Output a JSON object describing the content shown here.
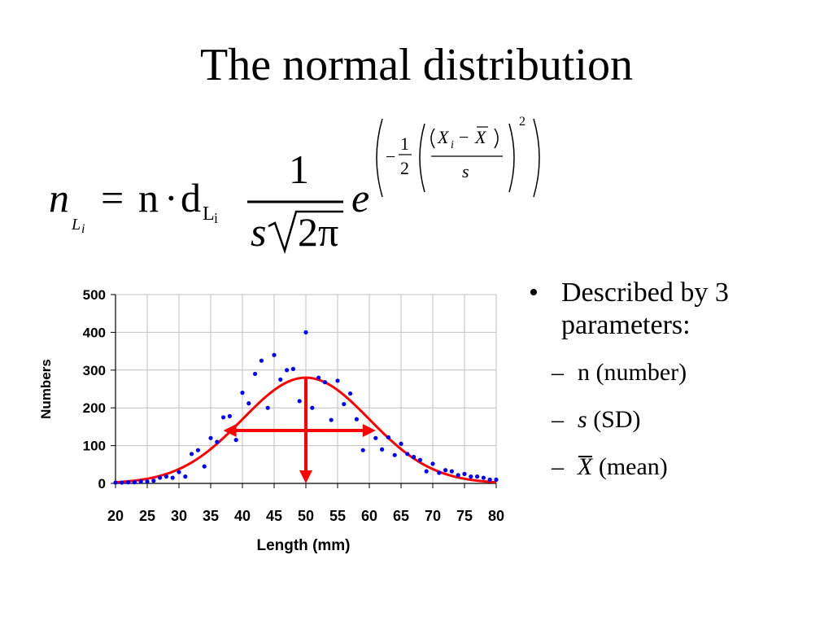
{
  "title": "The normal distribution",
  "formula": {
    "lhs_n": "n",
    "lhs_sub": "L",
    "lhs_sub_i": "i",
    "equals": "=",
    "n_text": "n",
    "dot": "·",
    "d_text": "d",
    "d_sub": "L",
    "d_sub_i": "i",
    "frac_num": "1",
    "frac_den_s": "s",
    "frac_den_rest": "2π",
    "e": "e",
    "exp_minus": "−",
    "exp_half_num": "1",
    "exp_half_den": "2",
    "exp_x": "X",
    "exp_x_sub": "i",
    "exp_minus2": "−",
    "exp_xbar": "X",
    "exp_s": "s",
    "exp_power": "2"
  },
  "bullets": {
    "main": "Described by 3 parameters:",
    "subs": [
      {
        "dash": "–",
        "prefix": "",
        "text": "n (number)",
        "italic_part": ""
      },
      {
        "dash": "–",
        "prefix": "s",
        "text": " (SD)",
        "italic_part": "s"
      },
      {
        "dash": "–",
        "prefix": "X",
        "text": " (mean)",
        "italic_part": "xbar"
      }
    ]
  },
  "chart_data": {
    "type": "scatter",
    "xlabel": "Length (mm)",
    "ylabel": "Numbers",
    "xlim": [
      20,
      80
    ],
    "ylim": [
      0,
      500
    ],
    "xticks": [
      20,
      25,
      30,
      35,
      40,
      45,
      50,
      55,
      60,
      65,
      70,
      75,
      80
    ],
    "yticks": [
      0,
      100,
      200,
      300,
      400,
      500
    ],
    "grid": true,
    "points": [
      [
        20,
        2
      ],
      [
        21,
        2
      ],
      [
        22,
        3
      ],
      [
        23,
        3
      ],
      [
        24,
        5
      ],
      [
        25,
        5
      ],
      [
        26,
        7
      ],
      [
        27,
        15
      ],
      [
        28,
        18
      ],
      [
        29,
        15
      ],
      [
        30,
        30
      ],
      [
        31,
        18
      ],
      [
        32,
        78
      ],
      [
        33,
        88
      ],
      [
        34,
        45
      ],
      [
        35,
        120
      ],
      [
        36,
        110
      ],
      [
        37,
        175
      ],
      [
        38,
        178
      ],
      [
        39,
        115
      ],
      [
        40,
        240
      ],
      [
        41,
        212
      ],
      [
        42,
        290
      ],
      [
        43,
        325
      ],
      [
        44,
        200
      ],
      [
        45,
        340
      ],
      [
        46,
        275
      ],
      [
        47,
        300
      ],
      [
        48,
        303
      ],
      [
        49,
        218
      ],
      [
        50,
        400
      ],
      [
        51,
        200
      ],
      [
        52,
        280
      ],
      [
        53,
        268
      ],
      [
        54,
        168
      ],
      [
        55,
        272
      ],
      [
        56,
        210
      ],
      [
        57,
        238
      ],
      [
        58,
        170
      ],
      [
        59,
        88
      ],
      [
        60,
        140
      ],
      [
        61,
        120
      ],
      [
        62,
        90
      ],
      [
        63,
        122
      ],
      [
        64,
        75
      ],
      [
        65,
        105
      ],
      [
        66,
        78
      ],
      [
        67,
        70
      ],
      [
        68,
        62
      ],
      [
        69,
        32
      ],
      [
        70,
        52
      ],
      [
        71,
        28
      ],
      [
        72,
        35
      ],
      [
        73,
        32
      ],
      [
        74,
        22
      ],
      [
        75,
        25
      ],
      [
        76,
        18
      ],
      [
        77,
        18
      ],
      [
        78,
        15
      ],
      [
        79,
        10
      ],
      [
        80,
        10
      ]
    ],
    "fit_curve": {
      "n_times_d": 7019,
      "mean": 50,
      "sd": 10
    },
    "mean_line": {
      "x": 50,
      "y_top": 280,
      "y_bottom": 0
    },
    "sd_arrow": {
      "y": 140,
      "x_left": 37,
      "x_right": 61
    },
    "colors": {
      "points": "#0000ff",
      "curve": "#ff0000",
      "grid": "#c0c0c0",
      "axis": "#000000"
    }
  }
}
